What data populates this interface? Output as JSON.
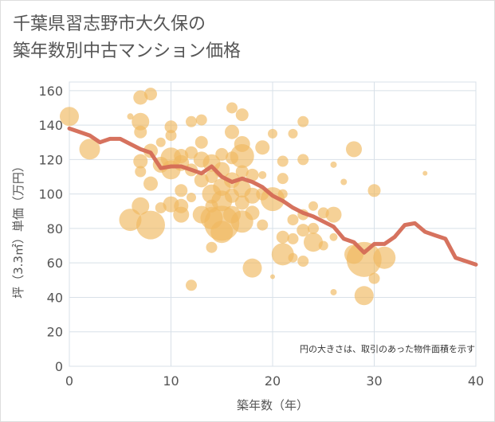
{
  "title_lines": [
    "千葉県習志野市大久保の",
    "築年数別中古マンション価格"
  ],
  "colors": {
    "bubble": "#f0b860",
    "line": "#d46a55",
    "grid": "#d8e0e8",
    "text": "#555555"
  },
  "chart_data": {
    "type": "scatter",
    "title": "千葉県習志野市大久保の築年数別中古マンション価格",
    "xlabel": "築年数（年）",
    "ylabel": "坪（3.3㎡）単価（万円）",
    "xlim": [
      0,
      40
    ],
    "ylim": [
      0,
      165
    ],
    "xticks": [
      0,
      10,
      20,
      30,
      40
    ],
    "yticks": [
      0,
      20,
      40,
      60,
      80,
      100,
      120,
      140,
      160
    ],
    "grid": true,
    "note": "円の大きさは、取引のあった物件面積を示す",
    "bubbles": [
      {
        "x": 0,
        "y": 145,
        "s": 12
      },
      {
        "x": 2,
        "y": 126,
        "s": 13
      },
      {
        "x": 6,
        "y": 145,
        "s": 4
      },
      {
        "x": 7,
        "y": 156,
        "s": 9
      },
      {
        "x": 8,
        "y": 158,
        "s": 8
      },
      {
        "x": 7,
        "y": 142,
        "s": 11
      },
      {
        "x": 7,
        "y": 136,
        "s": 8
      },
      {
        "x": 8,
        "y": 125,
        "s": 9
      },
      {
        "x": 7,
        "y": 119,
        "s": 9
      },
      {
        "x": 7,
        "y": 113,
        "s": 7
      },
      {
        "x": 8,
        "y": 106,
        "s": 9
      },
      {
        "x": 9,
        "y": 130,
        "s": 6
      },
      {
        "x": 9,
        "y": 117,
        "s": 10
      },
      {
        "x": 10,
        "y": 139,
        "s": 8
      },
      {
        "x": 10,
        "y": 134,
        "s": 7
      },
      {
        "x": 10,
        "y": 121,
        "s": 13
      },
      {
        "x": 10,
        "y": 114,
        "s": 12
      },
      {
        "x": 11,
        "y": 122,
        "s": 9
      },
      {
        "x": 11,
        "y": 118,
        "s": 10
      },
      {
        "x": 12,
        "y": 142,
        "s": 7
      },
      {
        "x": 13,
        "y": 143,
        "s": 7
      },
      {
        "x": 13,
        "y": 130,
        "s": 8
      },
      {
        "x": 12,
        "y": 124,
        "s": 8
      },
      {
        "x": 12,
        "y": 114,
        "s": 8
      },
      {
        "x": 11,
        "y": 102,
        "s": 8
      },
      {
        "x": 12,
        "y": 98,
        "s": 6
      },
      {
        "x": 11,
        "y": 93,
        "s": 9
      },
      {
        "x": 10,
        "y": 94,
        "s": 10
      },
      {
        "x": 9,
        "y": 92,
        "s": 7
      },
      {
        "x": 7,
        "y": 93,
        "s": 11
      },
      {
        "x": 6,
        "y": 85,
        "s": 14
      },
      {
        "x": 8,
        "y": 82,
        "s": 18
      },
      {
        "x": 11,
        "y": 88,
        "s": 10
      },
      {
        "x": 13,
        "y": 120,
        "s": 10
      },
      {
        "x": 13,
        "y": 108,
        "s": 9
      },
      {
        "x": 14,
        "y": 118,
        "s": 11
      },
      {
        "x": 14,
        "y": 110,
        "s": 8
      },
      {
        "x": 14,
        "y": 100,
        "s": 12
      },
      {
        "x": 14,
        "y": 93,
        "s": 8
      },
      {
        "x": 13,
        "y": 88,
        "s": 11
      },
      {
        "x": 14,
        "y": 86,
        "s": 14
      },
      {
        "x": 15,
        "y": 83,
        "s": 22
      },
      {
        "x": 15,
        "y": 78,
        "s": 14
      },
      {
        "x": 14,
        "y": 69,
        "s": 7
      },
      {
        "x": 12,
        "y": 47,
        "s": 7
      },
      {
        "x": 15,
        "y": 96,
        "s": 13
      },
      {
        "x": 15,
        "y": 104,
        "s": 11
      },
      {
        "x": 15,
        "y": 114,
        "s": 10
      },
      {
        "x": 15,
        "y": 123,
        "s": 8
      },
      {
        "x": 16,
        "y": 150,
        "s": 7
      },
      {
        "x": 16,
        "y": 136,
        "s": 9
      },
      {
        "x": 16,
        "y": 121,
        "s": 8
      },
      {
        "x": 16,
        "y": 108,
        "s": 10
      },
      {
        "x": 16,
        "y": 99,
        "s": 9
      },
      {
        "x": 16,
        "y": 88,
        "s": 11
      },
      {
        "x": 17,
        "y": 146,
        "s": 8
      },
      {
        "x": 17,
        "y": 129,
        "s": 10
      },
      {
        "x": 17,
        "y": 122,
        "s": 15
      },
      {
        "x": 17,
        "y": 113,
        "s": 8
      },
      {
        "x": 17,
        "y": 103,
        "s": 11
      },
      {
        "x": 17,
        "y": 95,
        "s": 9
      },
      {
        "x": 17,
        "y": 84,
        "s": 14
      },
      {
        "x": 18,
        "y": 111,
        "s": 8
      },
      {
        "x": 18,
        "y": 99,
        "s": 10
      },
      {
        "x": 18,
        "y": 89,
        "s": 9
      },
      {
        "x": 18,
        "y": 57,
        "s": 12
      },
      {
        "x": 19,
        "y": 127,
        "s": 9
      },
      {
        "x": 19,
        "y": 111,
        "s": 5
      },
      {
        "x": 19,
        "y": 100,
        "s": 8
      },
      {
        "x": 19,
        "y": 82,
        "s": 7
      },
      {
        "x": 20,
        "y": 135,
        "s": 6
      },
      {
        "x": 20,
        "y": 97,
        "s": 15
      },
      {
        "x": 20,
        "y": 52,
        "s": 3
      },
      {
        "x": 21,
        "y": 119,
        "s": 7
      },
      {
        "x": 21,
        "y": 109,
        "s": 7
      },
      {
        "x": 21,
        "y": 100,
        "s": 6
      },
      {
        "x": 21,
        "y": 75,
        "s": 8
      },
      {
        "x": 21,
        "y": 65,
        "s": 14
      },
      {
        "x": 22,
        "y": 135,
        "s": 6
      },
      {
        "x": 22,
        "y": 85,
        "s": 7
      },
      {
        "x": 22,
        "y": 74,
        "s": 7
      },
      {
        "x": 22,
        "y": 63,
        "s": 6
      },
      {
        "x": 23,
        "y": 142,
        "s": 7
      },
      {
        "x": 23,
        "y": 120,
        "s": 7
      },
      {
        "x": 23,
        "y": 88,
        "s": 7
      },
      {
        "x": 23,
        "y": 79,
        "s": 8
      },
      {
        "x": 23,
        "y": 61,
        "s": 7
      },
      {
        "x": 24,
        "y": 93,
        "s": 6
      },
      {
        "x": 24,
        "y": 80,
        "s": 7
      },
      {
        "x": 24,
        "y": 72,
        "s": 12
      },
      {
        "x": 25,
        "y": 89,
        "s": 7
      },
      {
        "x": 25,
        "y": 70,
        "s": 6
      },
      {
        "x": 26,
        "y": 117,
        "s": 4
      },
      {
        "x": 26,
        "y": 88,
        "s": 10
      },
      {
        "x": 26,
        "y": 75,
        "s": 5
      },
      {
        "x": 26,
        "y": 43,
        "s": 4
      },
      {
        "x": 27,
        "y": 107,
        "s": 4
      },
      {
        "x": 28,
        "y": 126,
        "s": 10
      },
      {
        "x": 28,
        "y": 65,
        "s": 12
      },
      {
        "x": 29,
        "y": 62,
        "s": 22
      },
      {
        "x": 29,
        "y": 41,
        "s": 12
      },
      {
        "x": 30,
        "y": 102,
        "s": 8
      },
      {
        "x": 30,
        "y": 51,
        "s": 7
      },
      {
        "x": 31,
        "y": 63,
        "s": 14
      },
      {
        "x": 35,
        "y": 112,
        "s": 3
      }
    ],
    "trend": {
      "x": [
        0,
        1,
        2,
        3,
        4,
        5,
        6,
        7,
        8,
        9,
        10,
        11,
        12,
        13,
        14,
        15,
        16,
        17,
        18,
        19,
        20,
        21,
        22,
        23,
        24,
        25,
        26,
        27,
        28,
        29,
        30,
        31,
        32,
        33,
        34,
        35,
        36,
        37,
        38,
        39,
        40
      ],
      "y": [
        138,
        136,
        134,
        130,
        132,
        132,
        129,
        126,
        124,
        115,
        116,
        116,
        114,
        112,
        116,
        110,
        107,
        109,
        107,
        104,
        99,
        96,
        92,
        89,
        87,
        84,
        81,
        74,
        72,
        66,
        71,
        71,
        75,
        82,
        83,
        78,
        76,
        74,
        63,
        61,
        59
      ]
    }
  }
}
